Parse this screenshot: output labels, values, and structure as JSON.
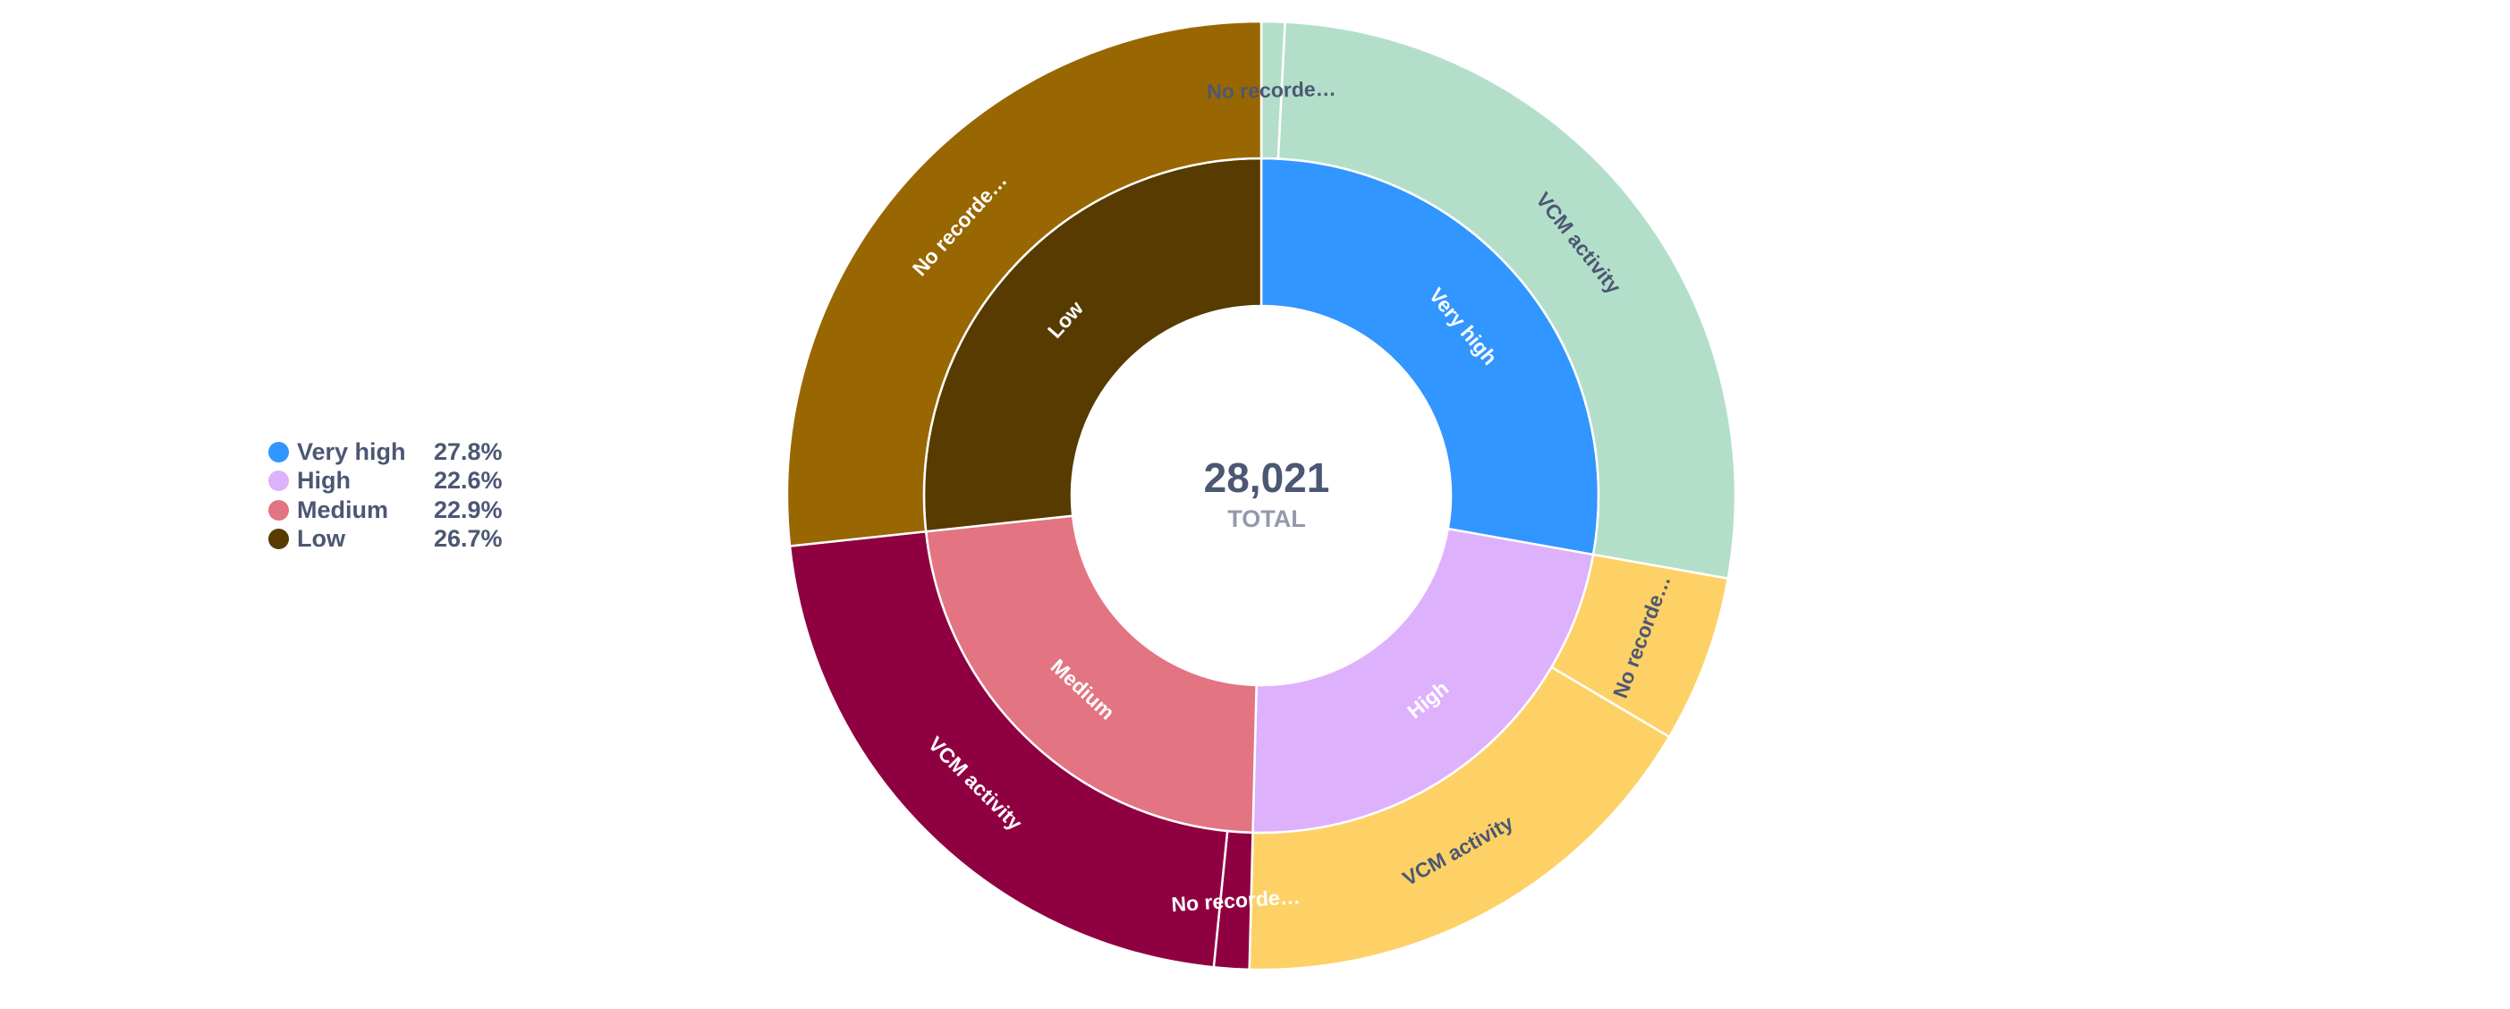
{
  "chart_data": {
    "type": "sunburst",
    "total": {
      "value": "28,021",
      "label": "TOTAL"
    },
    "legend": [
      {
        "name": "Very high",
        "pct": "27.8%",
        "color": "#3196ff"
      },
      {
        "name": "High",
        "pct": "22.6%",
        "color": "#deb1fc"
      },
      {
        "name": "Medium",
        "pct": "22.9%",
        "color": "#e37482"
      },
      {
        "name": "Low",
        "pct": "26.7%",
        "color": "#583b00"
      }
    ],
    "inner": [
      {
        "name": "Very high",
        "value": 27.8,
        "color": "#3196ff",
        "label": "Very high",
        "label_color": "#ffffff"
      },
      {
        "name": "High",
        "value": 22.6,
        "color": "#deb1fc",
        "label": "High",
        "label_color": "#ffffff"
      },
      {
        "name": "Medium",
        "value": 22.9,
        "color": "#e37482",
        "label": "Medium",
        "label_color": "#ffffff"
      },
      {
        "name": "Low",
        "value": 26.7,
        "color": "#583b00",
        "label": "Low",
        "label_color": "#ffffff"
      }
    ],
    "outer": [
      {
        "parent": "Very high",
        "name": "No recorded activity",
        "value": 0.8,
        "color": "#b3dfca",
        "label": "No recorde…",
        "label_color": "#4c5773"
      },
      {
        "parent": "Very high",
        "name": "VCM activity",
        "value": 27.0,
        "color": "#b3dfca",
        "label": "VCM activity",
        "label_color": "#4c5773"
      },
      {
        "parent": "High",
        "name": "No recorded activity",
        "value": 5.7,
        "color": "#fed167",
        "label": "No recorde…",
        "label_color": "#4c5773"
      },
      {
        "parent": "High",
        "name": "VCM activity",
        "value": 16.9,
        "color": "#fed167",
        "label": "VCM activity",
        "label_color": "#4c5773"
      },
      {
        "parent": "Medium",
        "name": "No recorded activity",
        "value": 1.2,
        "color": "#8f0041",
        "label": "No recorde…",
        "label_color": "#ffffff"
      },
      {
        "parent": "Medium",
        "name": "VCM activity",
        "value": 21.7,
        "color": "#8f0041",
        "label": "VCM activity",
        "label_color": "#ffffff"
      },
      {
        "parent": "Low",
        "name": "No recorded activity",
        "value": 26.7,
        "color": "#986701",
        "label": "No recorde…",
        "label_color": "#ffffff"
      }
    ]
  }
}
